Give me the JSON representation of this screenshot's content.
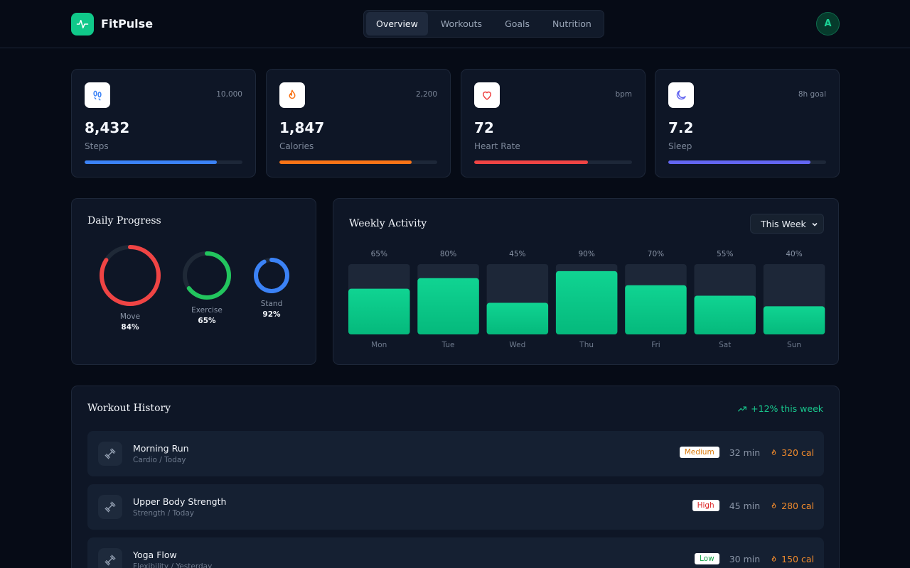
{
  "header": {
    "brand": "FitPulse",
    "tabs": [
      {
        "label": "Overview",
        "active": true
      },
      {
        "label": "Workouts",
        "active": false
      },
      {
        "label": "Goals",
        "active": false
      },
      {
        "label": "Nutrition",
        "active": false
      }
    ],
    "avatar": "A"
  },
  "stats": [
    {
      "icon": "footprints-icon",
      "goal": "10,000",
      "value": "8,432",
      "label": "Steps",
      "progress": 0.84,
      "color": "#3b82f6"
    },
    {
      "icon": "flame-icon",
      "goal": "2,200",
      "value": "1,847",
      "label": "Calories",
      "progress": 0.84,
      "color": "#f97316"
    },
    {
      "icon": "heart-icon",
      "goal": "bpm",
      "value": "72",
      "label": "Heart Rate",
      "progress": 0.72,
      "color": "#ef4444"
    },
    {
      "icon": "moon-icon",
      "goal": "8h goal",
      "value": "7.2",
      "label": "Sleep",
      "progress": 0.9,
      "color": "#6366f1"
    }
  ],
  "daily": {
    "title": "Daily Progress",
    "rings": [
      {
        "label": "Move",
        "pct": "84%",
        "value": 84,
        "color": "#ef4444"
      },
      {
        "label": "Exercise",
        "pct": "65%",
        "value": 65,
        "color": "#22c55e"
      },
      {
        "label": "Stand",
        "pct": "92%",
        "value": 92,
        "color": "#3b82f6"
      }
    ]
  },
  "weekly": {
    "title": "Weekly Activity",
    "select": "This Week"
  },
  "chart_data": {
    "type": "bar",
    "categories": [
      "Mon",
      "Tue",
      "Wed",
      "Thu",
      "Fri",
      "Sat",
      "Sun"
    ],
    "values": [
      65,
      80,
      45,
      90,
      70,
      55,
      40
    ],
    "labels": [
      "65%",
      "80%",
      "45%",
      "90%",
      "70%",
      "55%",
      "40%"
    ],
    "ylim": [
      0,
      100
    ],
    "color": "#10c98a"
  },
  "history": {
    "title": "Workout History",
    "trend": "+12% this week",
    "items": [
      {
        "name": "Morning Run",
        "sub": "Cardio / Today",
        "intensity": "Medium",
        "duration": "32 min",
        "calories": "320 cal",
        "badge_color": "#d97706"
      },
      {
        "name": "Upper Body Strength",
        "sub": "Strength / Today",
        "intensity": "High",
        "duration": "45 min",
        "calories": "280 cal",
        "badge_color": "#dc2626"
      },
      {
        "name": "Yoga Flow",
        "sub": "Flexibility / Yesterday",
        "intensity": "Low",
        "duration": "30 min",
        "calories": "150 cal",
        "badge_color": "#16a34a"
      }
    ]
  }
}
